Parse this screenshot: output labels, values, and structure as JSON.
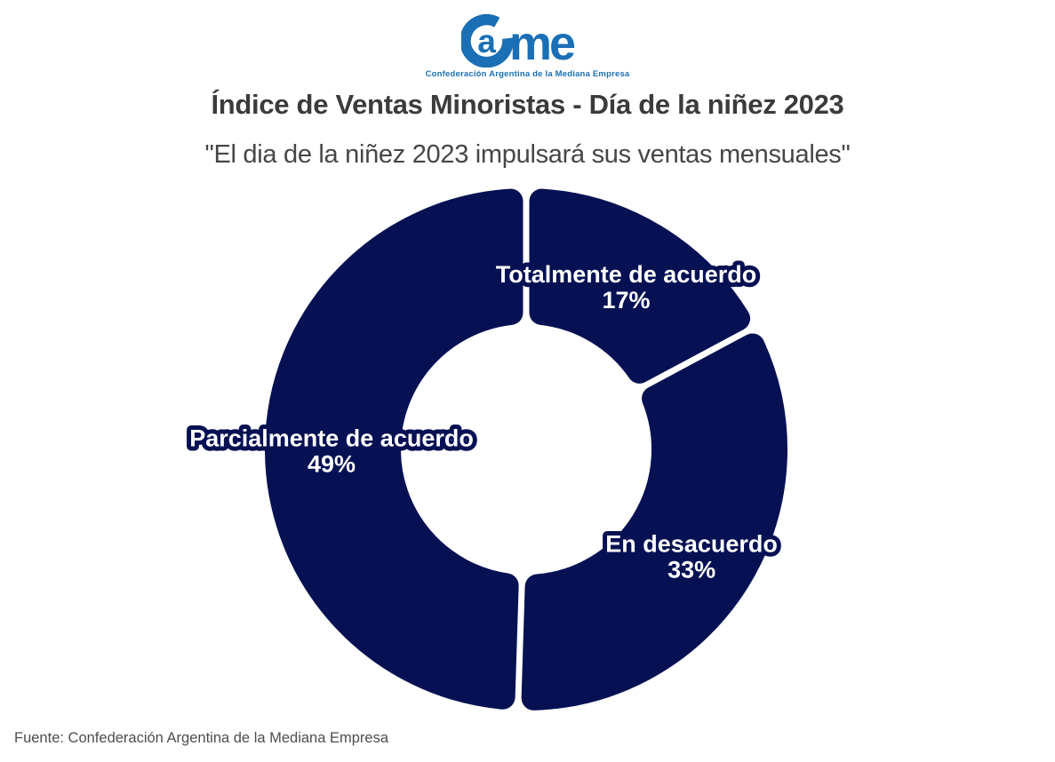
{
  "logo": {
    "a": "a",
    "me": "me",
    "tagline": "Confederación Argentina de la Mediana Empresa",
    "color": "#1B6FB5"
  },
  "header": {
    "title": "Índice de Ventas Minoristas - Día de la niñez 2023",
    "subtitle": "\"El dia de la niñez 2023 impulsará sus ventas mensuales\""
  },
  "footer": {
    "source": "Fuente: Confederación Argentina de la Mediana Empresa"
  },
  "chart_data": {
    "type": "pie",
    "subtype": "donut",
    "title": "Índice de Ventas Minoristas - Día de la niñez 2023",
    "categories": [
      "Totalmente de acuerdo",
      "En desacuerdo",
      "Parcialmente de acuerdo"
    ],
    "values": [
      17,
      33,
      49
    ],
    "unit": "%",
    "start_angle_deg": 0,
    "direction": "clockwise",
    "slice_color": "#061153",
    "label_text_color": "#ffffff",
    "label_outline_color": "#061153",
    "legend": "none",
    "labels_on_slices": true
  }
}
